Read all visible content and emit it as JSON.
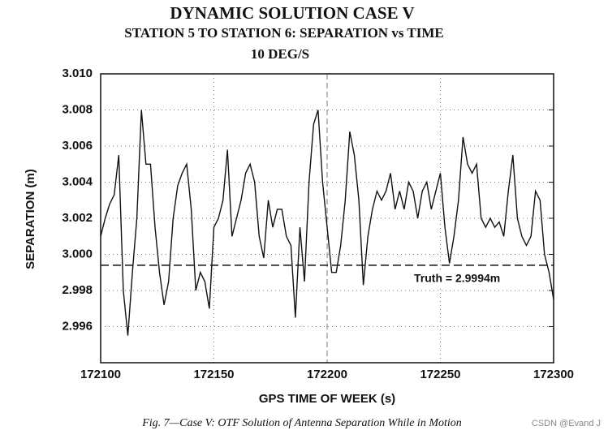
{
  "chart_data": {
    "type": "line",
    "title": "DYNAMIC SOLUTION CASE V",
    "subtitle": "STATION 5 TO STATION 6: SEPARATION vs TIME",
    "subtitle2": "10 DEG/S",
    "xlabel": "GPS TIME OF WEEK (s)",
    "ylabel": "SEPARATION (m)",
    "caption": "Fig. 7—Case V: OTF Solution of Antenna Separation While in Motion",
    "watermark": "CSDN @Evand J",
    "xlim": [
      172100,
      172300
    ],
    "xticks": [
      172100,
      172150,
      172200,
      172250,
      172300
    ],
    "ylim": [
      2.994,
      3.01
    ],
    "yticks": [
      2.996,
      2.998,
      {
        "value": 3.0,
        "label": "3.000"
      },
      3.002,
      3.004,
      3.006,
      3.008,
      {
        "value": 3.01,
        "label": "3.010"
      }
    ],
    "grid": true,
    "reference_line": {
      "value": 2.9994,
      "label": "Truth = 2.9994m"
    },
    "x": [
      172100,
      172102,
      172104,
      172106,
      172108,
      172110,
      172112,
      172114,
      172116,
      172118,
      172120,
      172122,
      172124,
      172126,
      172128,
      172130,
      172132,
      172134,
      172136,
      172138,
      172140,
      172142,
      172144,
      172146,
      172148,
      172150,
      172152,
      172154,
      172156,
      172158,
      172160,
      172162,
      172164,
      172166,
      172168,
      172170,
      172172,
      172174,
      172176,
      172178,
      172180,
      172182,
      172184,
      172186,
      172188,
      172190,
      172192,
      172194,
      172196,
      172198,
      172200,
      172202,
      172204,
      172206,
      172208,
      172210,
      172212,
      172214,
      172216,
      172218,
      172220,
      172222,
      172224,
      172226,
      172228,
      172230,
      172232,
      172234,
      172236,
      172238,
      172240,
      172242,
      172244,
      172246,
      172248,
      172250,
      172252,
      172254,
      172256,
      172258,
      172260,
      172262,
      172264,
      172266,
      172268,
      172270,
      172272,
      172274,
      172276,
      172278,
      172280,
      172282,
      172284,
      172286,
      172288,
      172290,
      172292,
      172294,
      172296,
      172298,
      172300
    ],
    "series": [
      {
        "name": "Separation",
        "color": "#111111",
        "values": [
          3.001,
          3.002,
          3.0028,
          3.0033,
          3.0055,
          2.998,
          2.9955,
          2.999,
          3.002,
          3.008,
          3.005,
          3.005,
          3.0015,
          2.999,
          2.9972,
          2.9985,
          3.002,
          3.0038,
          3.0045,
          3.005,
          3.0025,
          2.998,
          2.999,
          2.9985,
          2.997,
          3.0015,
          3.002,
          3.003,
          3.0058,
          3.001,
          3.002,
          3.003,
          3.0045,
          3.005,
          3.004,
          3.001,
          2.9998,
          3.003,
          3.0015,
          3.0025,
          3.0025,
          3.001,
          3.0005,
          2.9965,
          3.0015,
          2.9985,
          3.004,
          3.0072,
          3.008,
          3.004,
          3.0015,
          2.999,
          2.999,
          3.0005,
          3.003,
          3.0068,
          3.0055,
          3.003,
          2.9983,
          3.001,
          3.0025,
          3.0035,
          3.003,
          3.0035,
          3.0045,
          3.0025,
          3.0035,
          3.0025,
          3.004,
          3.0035,
          3.002,
          3.0035,
          3.004,
          3.0025,
          3.0035,
          3.0045,
          3.0015,
          2.9995,
          3.001,
          3.003,
          3.0065,
          3.005,
          3.0045,
          3.005,
          3.002,
          3.0015,
          3.002,
          3.0015,
          3.0018,
          3.001,
          3.0035,
          3.0055,
          3.002,
          3.001,
          3.0005,
          3.001,
          3.0035,
          3.003,
          3.0,
          2.999,
          2.9975
        ]
      }
    ]
  }
}
